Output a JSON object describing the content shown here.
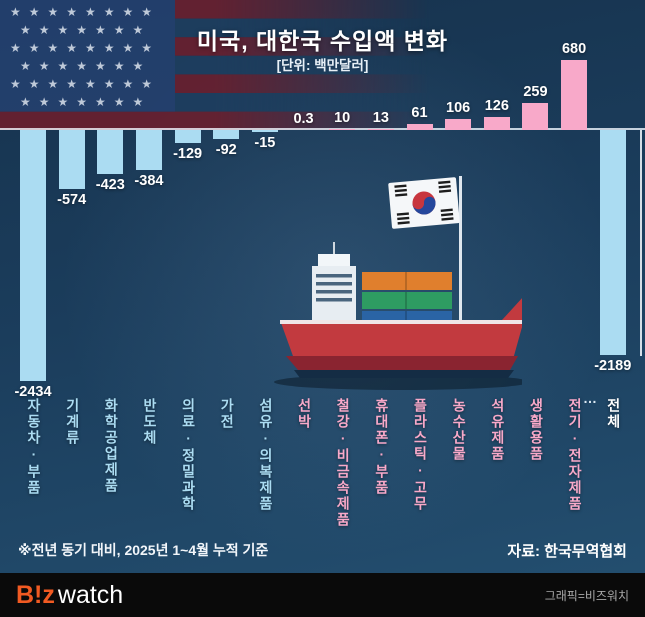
{
  "title": "미국, 대한국 수입액 변화",
  "subtitle": "[단위: 백만달러]",
  "chart_data": {
    "type": "bar",
    "title": "미국, 대한국 수입액 변화",
    "unit_label": "[단위: 백만달러]",
    "categories": [
      "자동차·부품",
      "기계류",
      "화학공업제품",
      "반도체",
      "의료·정밀과학",
      "가전",
      "섬유·의복제품",
      "선박",
      "철강·비금속제품",
      "휴대폰·부품",
      "플라스틱·고무",
      "농수산물",
      "석유제품",
      "생활용품",
      "전기·전자제품",
      "전체"
    ],
    "values": [
      -2434,
      -574,
      -423,
      -384,
      -129,
      -92,
      -15,
      0.3,
      10,
      13,
      61,
      106,
      126,
      259,
      680,
      -2189
    ],
    "value_labels": [
      "-2434",
      "-574",
      "-423",
      "-384",
      "-129",
      "-92",
      "-15",
      "0.3",
      "10",
      "13",
      "61",
      "106",
      "126",
      "259",
      "680",
      "-2189"
    ],
    "ylim": [
      -2500,
      700
    ],
    "baseline": 0,
    "grid": false,
    "legend": "none"
  },
  "colors": {
    "bar_positive": "#f8a9c9",
    "bar_negative": "#abdcf2",
    "label_positive": "#f8a9c9",
    "label_negative": "#abdcf2",
    "label_total": "#ffffff",
    "value_text": "#ffffff",
    "background": "#1b3d5c",
    "flag_red": "#69202f",
    "flag_blue": "#24406e",
    "footer_orange": "#f15a22"
  },
  "ellipsis": "…",
  "footnote": "※전년 동기 대비, 2025년 1~4월 누적 기준",
  "source": "자료: 한국무역협회",
  "footer": {
    "logo_primary": "B!z",
    "logo_secondary": "watch",
    "credit": "그래픽=비즈워치"
  }
}
